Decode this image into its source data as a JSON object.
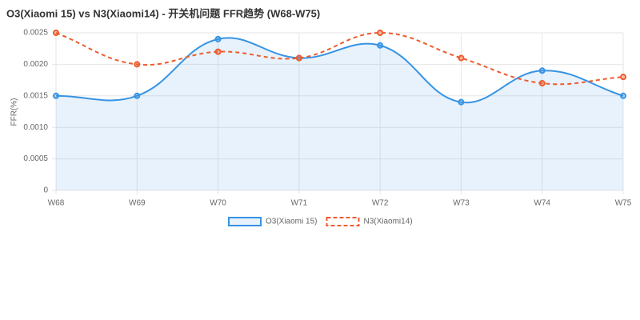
{
  "chart_data": {
    "type": "line",
    "title": "O3(Xiaomi 15) vs N3(Xiaomi14) - 开关机问题 FFR趋势 (W68-W75)",
    "y_label": "FFR(%)",
    "categories": [
      "W68",
      "W69",
      "W70",
      "W71",
      "W72",
      "W73",
      "W74",
      "W75"
    ],
    "series": [
      {
        "name": "O3(Xiaomi 15)",
        "color": "#3793e3",
        "fill": true,
        "dashed": false,
        "values": [
          0.0015,
          0.0015,
          0.0024,
          0.0021,
          0.0023,
          0.0014,
          0.0019,
          0.0015
        ]
      },
      {
        "name": "N3(Xiaomi14)",
        "color": "#ee5a2c",
        "fill": false,
        "dashed": true,
        "values": [
          0.0025,
          0.002,
          0.0022,
          0.0021,
          0.0025,
          0.0021,
          0.0017,
          0.0018
        ]
      }
    ],
    "ylim": [
      0,
      0.0025
    ],
    "yticks": [
      0,
      0.0005,
      {
        "value": 0.001,
        "label": "0.0010"
      },
      0.0015,
      {
        "value": 0.002,
        "label": "0.0020"
      },
      0.0025
    ],
    "grid": true,
    "legend": "bottom"
  }
}
